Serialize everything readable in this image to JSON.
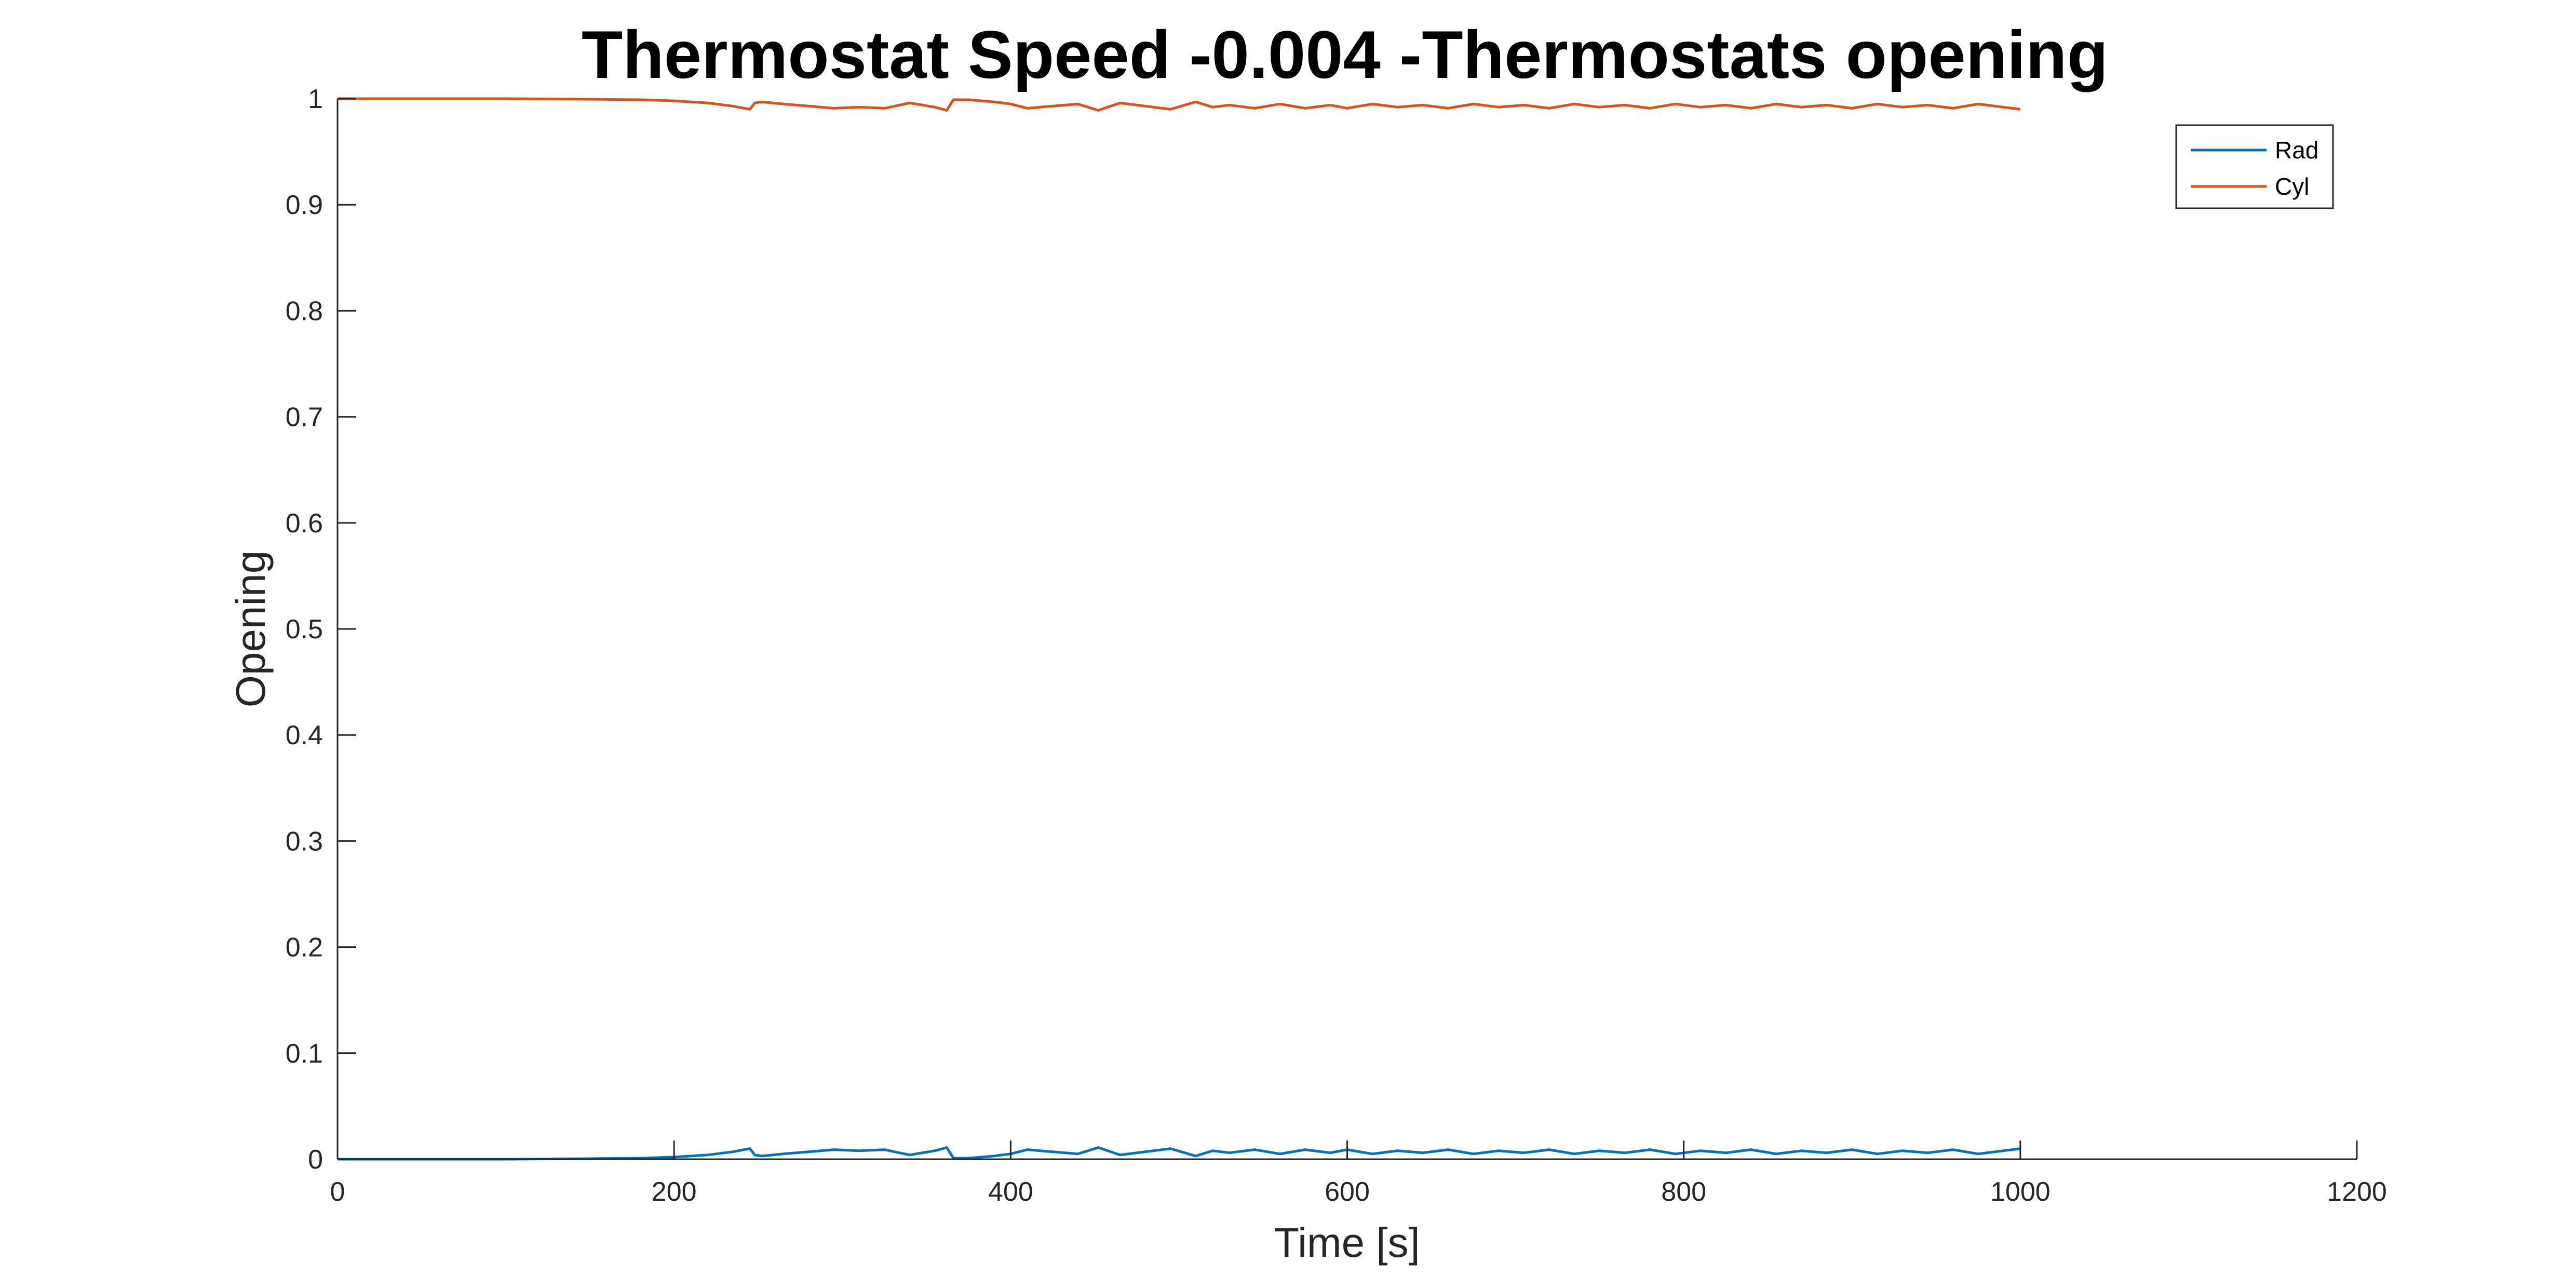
{
  "chart_data": {
    "type": "line",
    "title": "Thermostat Speed -0.004 -Thermostats opening",
    "xlabel": "Time [s]",
    "ylabel": "Opening",
    "xlim": [
      0,
      1200
    ],
    "ylim": [
      0,
      1
    ],
    "xticks": [
      0,
      200,
      400,
      600,
      800,
      1000,
      1200
    ],
    "yticks": [
      0,
      0.1,
      0.2,
      0.3,
      0.4,
      0.5,
      0.6,
      0.7,
      0.8,
      0.9,
      1
    ],
    "xtick_labels": [
      "0",
      "200",
      "400",
      "600",
      "800",
      "1000",
      "1200"
    ],
    "ytick_labels": [
      "0",
      "0.1",
      "0.2",
      "0.3",
      "0.4",
      "0.5",
      "0.6",
      "0.7",
      "0.8",
      "0.9",
      "1"
    ],
    "grid": false,
    "legend_position": "top-right",
    "series": [
      {
        "name": "Rad",
        "color": "#0072BD",
        "x": [
          0,
          100,
          150,
          180,
          200,
          220,
          235,
          245,
          248,
          252,
          265,
          280,
          295,
          310,
          325,
          340,
          355,
          362,
          366,
          375,
          390,
          400,
          410,
          425,
          440,
          452,
          465,
          480,
          495,
          510,
          520,
          530,
          545,
          560,
          575,
          590,
          600,
          615,
          630,
          645,
          660,
          675,
          690,
          705,
          720,
          735,
          750,
          765,
          780,
          795,
          810,
          825,
          840,
          855,
          870,
          885,
          900,
          915,
          930,
          945,
          960,
          975,
          990,
          1000
        ],
        "y": [
          0,
          0,
          0.0005,
          0.001,
          0.002,
          0.004,
          0.007,
          0.01,
          0.004,
          0.003,
          0.005,
          0.007,
          0.009,
          0.008,
          0.009,
          0.004,
          0.008,
          0.011,
          0.001,
          0.001,
          0.003,
          0.005,
          0.009,
          0.007,
          0.005,
          0.011,
          0.004,
          0.007,
          0.01,
          0.003,
          0.008,
          0.006,
          0.009,
          0.005,
          0.009,
          0.006,
          0.009,
          0.005,
          0.008,
          0.006,
          0.009,
          0.005,
          0.008,
          0.006,
          0.009,
          0.005,
          0.008,
          0.006,
          0.009,
          0.005,
          0.008,
          0.006,
          0.009,
          0.005,
          0.008,
          0.006,
          0.009,
          0.005,
          0.008,
          0.006,
          0.009,
          0.005,
          0.008,
          0.01
        ]
      },
      {
        "name": "Cyl",
        "color": "#D95319",
        "x": [
          0,
          100,
          150,
          180,
          200,
          220,
          235,
          245,
          248,
          252,
          265,
          280,
          295,
          310,
          325,
          340,
          355,
          362,
          366,
          375,
          390,
          400,
          410,
          425,
          440,
          452,
          465,
          480,
          495,
          510,
          520,
          530,
          545,
          560,
          575,
          590,
          600,
          615,
          630,
          645,
          660,
          675,
          690,
          705,
          720,
          735,
          750,
          765,
          780,
          795,
          810,
          825,
          840,
          855,
          870,
          885,
          900,
          915,
          930,
          945,
          960,
          975,
          990,
          1000
        ],
        "y": [
          1,
          1,
          0.9995,
          0.999,
          0.998,
          0.996,
          0.993,
          0.99,
          0.996,
          0.997,
          0.995,
          0.993,
          0.991,
          0.992,
          0.991,
          0.996,
          0.992,
          0.989,
          0.999,
          0.999,
          0.997,
          0.995,
          0.991,
          0.993,
          0.995,
          0.989,
          0.996,
          0.993,
          0.99,
          0.997,
          0.992,
          0.994,
          0.991,
          0.995,
          0.991,
          0.994,
          0.991,
          0.995,
          0.992,
          0.994,
          0.991,
          0.995,
          0.992,
          0.994,
          0.991,
          0.995,
          0.992,
          0.994,
          0.991,
          0.995,
          0.992,
          0.994,
          0.991,
          0.995,
          0.992,
          0.994,
          0.991,
          0.995,
          0.992,
          0.994,
          0.991,
          0.995,
          0.992,
          0.99
        ]
      }
    ]
  }
}
